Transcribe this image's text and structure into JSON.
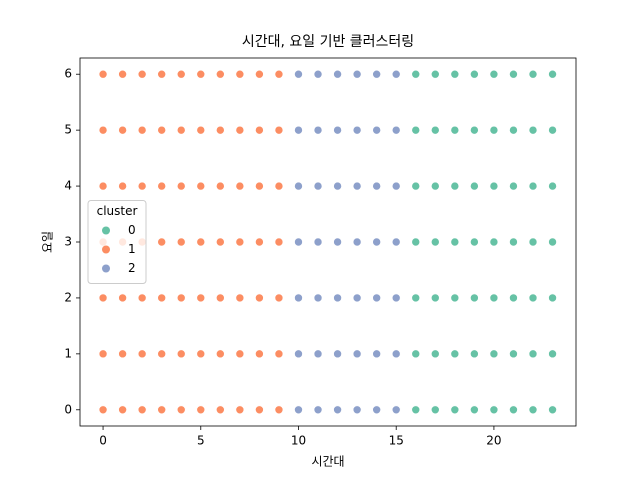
{
  "chart_data": {
    "type": "scatter",
    "title": "시간대, 요일 기반 클러스터링",
    "xlabel": "시간대",
    "ylabel": "요일",
    "legend_title": "cluster",
    "legend": "center left",
    "xlim": [
      -1.18,
      24.2
    ],
    "ylim": [
      -0.29,
      6.29
    ],
    "xticks": [
      0,
      5,
      10,
      15,
      20
    ],
    "yticks": [
      0,
      1,
      2,
      3,
      4,
      5,
      6
    ],
    "series": [
      {
        "name": "0",
        "color": "#66c2a5",
        "x": [
          16,
          17,
          18,
          19,
          20,
          21,
          22,
          23,
          16,
          17,
          18,
          19,
          20,
          21,
          22,
          23,
          16,
          17,
          18,
          19,
          20,
          21,
          22,
          23,
          16,
          17,
          18,
          19,
          20,
          21,
          22,
          23,
          16,
          17,
          18,
          19,
          20,
          21,
          22,
          23,
          16,
          17,
          18,
          19,
          20,
          21,
          22,
          23,
          16,
          17,
          18,
          19,
          20,
          21,
          22,
          23
        ],
        "values": [
          0,
          0,
          0,
          0,
          0,
          0,
          0,
          0,
          1,
          1,
          1,
          1,
          1,
          1,
          1,
          1,
          2,
          2,
          2,
          2,
          2,
          2,
          2,
          2,
          3,
          3,
          3,
          3,
          3,
          3,
          3,
          3,
          4,
          4,
          4,
          4,
          4,
          4,
          4,
          4,
          5,
          5,
          5,
          5,
          5,
          5,
          5,
          5,
          6,
          6,
          6,
          6,
          6,
          6,
          6,
          6
        ]
      },
      {
        "name": "1",
        "color": "#fc8d62",
        "x": [
          0,
          1,
          2,
          3,
          4,
          5,
          6,
          7,
          8,
          9,
          0,
          1,
          2,
          3,
          4,
          5,
          6,
          7,
          8,
          9,
          0,
          1,
          2,
          3,
          4,
          5,
          6,
          7,
          8,
          9,
          0,
          1,
          2,
          3,
          4,
          5,
          6,
          7,
          8,
          9,
          0,
          1,
          2,
          3,
          4,
          5,
          6,
          7,
          8,
          9,
          0,
          1,
          2,
          3,
          4,
          5,
          6,
          7,
          8,
          9,
          0,
          1,
          2,
          3,
          4,
          5,
          6,
          7,
          8,
          9
        ],
        "values": [
          0,
          0,
          0,
          0,
          0,
          0,
          0,
          0,
          0,
          0,
          1,
          1,
          1,
          1,
          1,
          1,
          1,
          1,
          1,
          1,
          2,
          2,
          2,
          2,
          2,
          2,
          2,
          2,
          2,
          2,
          3,
          3,
          3,
          3,
          3,
          3,
          3,
          3,
          3,
          3,
          4,
          4,
          4,
          4,
          4,
          4,
          4,
          4,
          4,
          4,
          5,
          5,
          5,
          5,
          5,
          5,
          5,
          5,
          5,
          5,
          6,
          6,
          6,
          6,
          6,
          6,
          6,
          6,
          6,
          6
        ]
      },
      {
        "name": "2",
        "color": "#8da0cb",
        "x": [
          10,
          11,
          12,
          13,
          14,
          15,
          10,
          11,
          12,
          13,
          14,
          15,
          10,
          11,
          12,
          13,
          14,
          15,
          10,
          11,
          12,
          13,
          14,
          15,
          10,
          11,
          12,
          13,
          14,
          15,
          10,
          11,
          12,
          13,
          14,
          15,
          10,
          11,
          12,
          13,
          14,
          15
        ],
        "values": [
          0,
          0,
          0,
          0,
          0,
          0,
          1,
          1,
          1,
          1,
          1,
          1,
          2,
          2,
          2,
          2,
          2,
          2,
          3,
          3,
          3,
          3,
          3,
          3,
          4,
          4,
          4,
          4,
          4,
          4,
          5,
          5,
          5,
          5,
          5,
          5,
          6,
          6,
          6,
          6,
          6,
          6
        ]
      }
    ]
  }
}
